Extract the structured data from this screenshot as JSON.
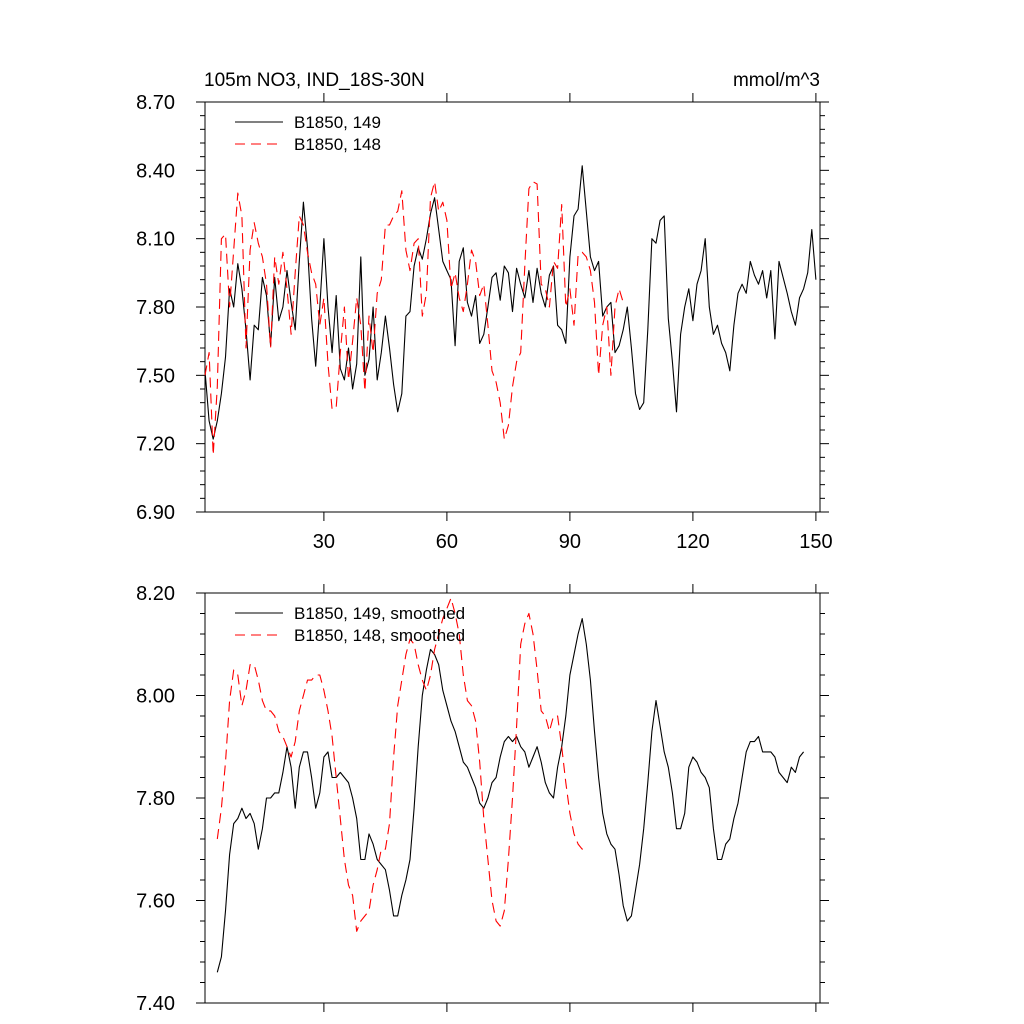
{
  "chart_data": [
    {
      "type": "line",
      "title": "105m NO3, IND_18S-30N",
      "units": "mmol/m^3",
      "xlim": [
        1,
        151
      ],
      "ylim": [
        6.9,
        8.7
      ],
      "xticks": [
        30,
        60,
        90,
        120,
        150
      ],
      "xtick_labels": [
        "30",
        "60",
        "90",
        "120",
        "150"
      ],
      "yticks": [
        6.9,
        7.2,
        7.5,
        7.8,
        8.1,
        8.4,
        8.7
      ],
      "ytick_labels": [
        "6.90",
        "7.20",
        "7.50",
        "7.80",
        "8.10",
        "8.40",
        "8.70"
      ],
      "legend_position": "top-left",
      "series": [
        {
          "name": "B1850, 149",
          "color": "#000000",
          "dash": "solid",
          "x_start": 1,
          "values": [
            7.52,
            7.3,
            7.22,
            7.3,
            7.42,
            7.58,
            7.88,
            7.8,
            7.99,
            7.88,
            7.7,
            7.48,
            7.72,
            7.7,
            7.93,
            7.85,
            7.63,
            7.93,
            7.74,
            7.8,
            7.96,
            7.82,
            7.7,
            8.0,
            8.26,
            8.06,
            7.75,
            7.54,
            7.8,
            8.1,
            7.8,
            7.6,
            7.85,
            7.53,
            7.48,
            7.62,
            7.44,
            7.55,
            8.02,
            7.5,
            7.57,
            7.8,
            7.48,
            7.6,
            7.76,
            7.62,
            7.46,
            7.34,
            7.42,
            7.76,
            7.78,
            7.98,
            8.06,
            8.01,
            8.1,
            8.21,
            8.28,
            8.14,
            8.0,
            7.96,
            7.92,
            7.63,
            8.0,
            8.06,
            7.82,
            7.76,
            7.85,
            7.64,
            7.68,
            7.8,
            7.93,
            7.95,
            7.83,
            7.98,
            7.95,
            7.78,
            7.97,
            7.9,
            7.84,
            7.96,
            7.82,
            7.97,
            7.86,
            7.8,
            7.94,
            7.98,
            7.72,
            7.7,
            7.64,
            8.02,
            8.2,
            8.23,
            8.42,
            8.22,
            8.02,
            7.96,
            8.0,
            7.76,
            7.8,
            7.82,
            7.6,
            7.63,
            7.7,
            7.8,
            7.62,
            7.42,
            7.35,
            7.38,
            7.7,
            8.1,
            8.08,
            8.18,
            8.2,
            7.75,
            7.56,
            7.34,
            7.68,
            7.8,
            7.88,
            7.74,
            7.9,
            7.96,
            8.1,
            7.8,
            7.68,
            7.72,
            7.64,
            7.6,
            7.52,
            7.72,
            7.86,
            7.9,
            7.86,
            8.0,
            7.94,
            7.9,
            7.96,
            7.84,
            7.96,
            7.66,
            8.0,
            7.93,
            7.86,
            7.78,
            7.72,
            7.84,
            7.88,
            7.95,
            8.14,
            7.92
          ]
        },
        {
          "name": "B1850, 148",
          "color": "#ff0000",
          "dash": "dashed",
          "x_start": 1,
          "values": [
            7.5,
            7.6,
            7.15,
            7.45,
            8.1,
            8.12,
            7.8,
            8.05,
            8.3,
            8.2,
            7.62,
            8.05,
            8.17,
            8.08,
            8.02,
            7.9,
            7.62,
            8.02,
            7.9,
            8.04,
            7.88,
            7.68,
            7.95,
            8.2,
            8.16,
            8.04,
            7.95,
            7.9,
            7.72,
            7.84,
            7.55,
            7.35,
            7.36,
            7.6,
            7.8,
            7.48,
            7.65,
            7.84,
            7.72,
            7.43,
            7.76,
            7.6,
            7.86,
            7.92,
            8.16,
            8.16,
            8.2,
            8.22,
            8.31,
            8.05,
            7.96,
            8.08,
            8.1,
            7.76,
            7.86,
            8.28,
            8.35,
            8.22,
            8.26,
            8.18,
            7.88,
            7.95,
            7.84,
            7.78,
            7.9,
            8.05,
            8.0,
            7.85,
            7.9,
            7.72,
            7.52,
            7.47,
            7.38,
            7.22,
            7.28,
            7.45,
            7.56,
            7.6,
            7.98,
            8.32,
            8.35,
            8.34,
            7.9,
            7.88,
            7.8,
            8.0,
            7.97,
            8.25,
            7.8,
            7.88,
            7.72,
            8.03,
            8.04,
            8.02,
            7.96,
            7.82,
            7.5,
            7.72,
            7.8,
            7.5,
            7.8,
            7.88,
            7.82
          ]
        }
      ]
    },
    {
      "type": "line",
      "title": "",
      "xlim": [
        1,
        151
      ],
      "ylim": [
        7.4,
        8.2
      ],
      "yticks": [
        7.4,
        7.6,
        7.8,
        8.0,
        8.2
      ],
      "ytick_labels": [
        "7.40",
        "7.60",
        "7.80",
        "8.00",
        "8.20"
      ],
      "legend_position": "top-left",
      "series": [
        {
          "name": "B1850, 149, smoothed",
          "color": "#000000",
          "dash": "solid",
          "x_start": 4,
          "values": [
            7.46,
            7.49,
            7.58,
            7.69,
            7.75,
            7.76,
            7.78,
            7.76,
            7.77,
            7.75,
            7.7,
            7.74,
            7.8,
            7.8,
            7.81,
            7.81,
            7.85,
            7.9,
            7.86,
            7.78,
            7.86,
            7.89,
            7.89,
            7.84,
            7.78,
            7.81,
            7.88,
            7.89,
            7.84,
            7.84,
            7.85,
            7.84,
            7.83,
            7.8,
            7.76,
            7.68,
            7.68,
            7.73,
            7.71,
            7.68,
            7.67,
            7.66,
            7.62,
            7.57,
            7.57,
            7.61,
            7.64,
            7.68,
            7.78,
            7.9,
            8.0,
            8.05,
            8.09,
            8.08,
            8.06,
            8.01,
            7.98,
            7.95,
            7.93,
            7.9,
            7.87,
            7.86,
            7.84,
            7.82,
            7.79,
            7.78,
            7.8,
            7.83,
            7.84,
            7.88,
            7.91,
            7.92,
            7.91,
            7.92,
            7.9,
            7.89,
            7.86,
            7.88,
            7.9,
            7.87,
            7.83,
            7.81,
            7.8,
            7.86,
            7.9,
            7.96,
            8.04,
            8.08,
            8.12,
            8.15,
            8.1,
            8.03,
            7.93,
            7.84,
            7.77,
            7.73,
            7.71,
            7.7,
            7.65,
            7.59,
            7.56,
            7.57,
            7.62,
            7.67,
            7.74,
            7.83,
            7.93,
            7.99,
            7.94,
            7.89,
            7.86,
            7.81,
            7.74,
            7.74,
            7.77,
            7.86,
            7.88,
            7.87,
            7.85,
            7.84,
            7.82,
            7.74,
            7.68,
            7.68,
            7.71,
            7.72,
            7.76,
            7.79,
            7.84,
            7.89,
            7.91,
            7.91,
            7.92,
            7.89,
            7.89,
            7.89,
            7.88,
            7.85,
            7.84,
            7.83,
            7.86,
            7.85,
            7.88,
            7.89
          ]
        },
        {
          "name": "B1850, 148, smoothed",
          "color": "#ff0000",
          "dash": "dashed",
          "x_start": 4,
          "values": [
            7.72,
            7.78,
            7.87,
            7.99,
            8.05,
            8.04,
            7.98,
            8.01,
            8.06,
            8.06,
            8.03,
            7.99,
            7.97,
            7.97,
            7.96,
            7.93,
            7.92,
            7.9,
            7.88,
            7.91,
            7.97,
            8.0,
            8.03,
            8.03,
            8.04,
            8.04,
            8.01,
            7.97,
            7.92,
            7.84,
            7.76,
            7.68,
            7.63,
            7.61,
            7.54,
            7.56,
            7.57,
            7.58,
            7.63,
            7.66,
            7.7,
            7.7,
            7.75,
            7.88,
            7.98,
            8.03,
            8.08,
            8.11,
            8.1,
            8.06,
            8.03,
            8.01,
            8.04,
            8.09,
            8.12,
            8.15,
            8.17,
            8.19,
            8.16,
            8.12,
            8.04,
            7.99,
            7.98,
            7.95,
            7.87,
            7.76,
            7.68,
            7.6,
            7.56,
            7.55,
            7.58,
            7.68,
            7.8,
            7.94,
            8.1,
            8.14,
            8.16,
            8.12,
            8.05,
            7.97,
            7.96,
            7.93,
            7.96,
            7.96,
            7.9,
            7.83,
            7.77,
            7.73,
            7.71,
            7.7,
            7.71
          ]
        }
      ]
    }
  ]
}
